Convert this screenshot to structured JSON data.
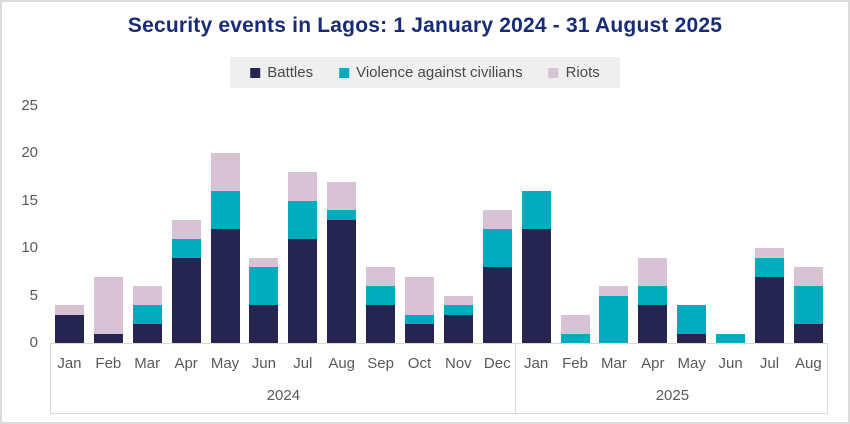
{
  "title": "Security events in Lagos: 1 January 2024 - 31 August 2025",
  "legend": [
    {
      "label": "Battles",
      "color": "#262550"
    },
    {
      "label": "Violence against civilians",
      "color": "#00abbe"
    },
    {
      "label": "Riots",
      "color": "#d7c3d3"
    }
  ],
  "colors": {
    "title": "#182b76",
    "axis_text": "#595959",
    "legend_background": "#efefef",
    "axis_line": "#d9d9d9"
  },
  "chart_data": {
    "type": "bar",
    "stacked": true,
    "title": "Security events in Lagos: 1 January 2024 - 31 August 2025",
    "categories": [
      "Jan",
      "Feb",
      "Mar",
      "Apr",
      "May",
      "Jun",
      "Jul",
      "Aug",
      "Sep",
      "Oct",
      "Nov",
      "Dec",
      "Jan",
      "Feb",
      "Mar",
      "Apr",
      "May",
      "Jun",
      "Jul",
      "Aug"
    ],
    "year_groups": [
      {
        "label": "2024",
        "months": 12
      },
      {
        "label": "2025",
        "months": 8
      }
    ],
    "series": [
      {
        "name": "Battles",
        "color": "#262550",
        "values": [
          3,
          1,
          2,
          9,
          12,
          4,
          11,
          13,
          4,
          2,
          3,
          8,
          12,
          0,
          0,
          4,
          1,
          0,
          7,
          2
        ]
      },
      {
        "name": "Violence against civilians",
        "color": "#00abbe",
        "values": [
          0,
          0,
          2,
          2,
          4,
          4,
          4,
          1,
          2,
          1,
          1,
          4,
          4,
          1,
          5,
          2,
          3,
          1,
          2,
          4
        ]
      },
      {
        "name": "Riots",
        "color": "#d7c3d3",
        "values": [
          1,
          6,
          2,
          2,
          4,
          1,
          3,
          3,
          2,
          4,
          1,
          2,
          0,
          2,
          1,
          3,
          0,
          0,
          1,
          2
        ]
      }
    ],
    "totals": [
      4,
      7,
      6,
      13,
      20,
      9,
      18,
      17,
      8,
      7,
      5,
      14,
      16,
      3,
      6,
      9,
      4,
      1,
      10,
      8
    ],
    "xlabel": "",
    "ylabel": "",
    "yticks": [
      0,
      5,
      10,
      15,
      20,
      25
    ],
    "ylim": [
      0,
      25
    ],
    "grid": false,
    "legend_position": "top"
  }
}
